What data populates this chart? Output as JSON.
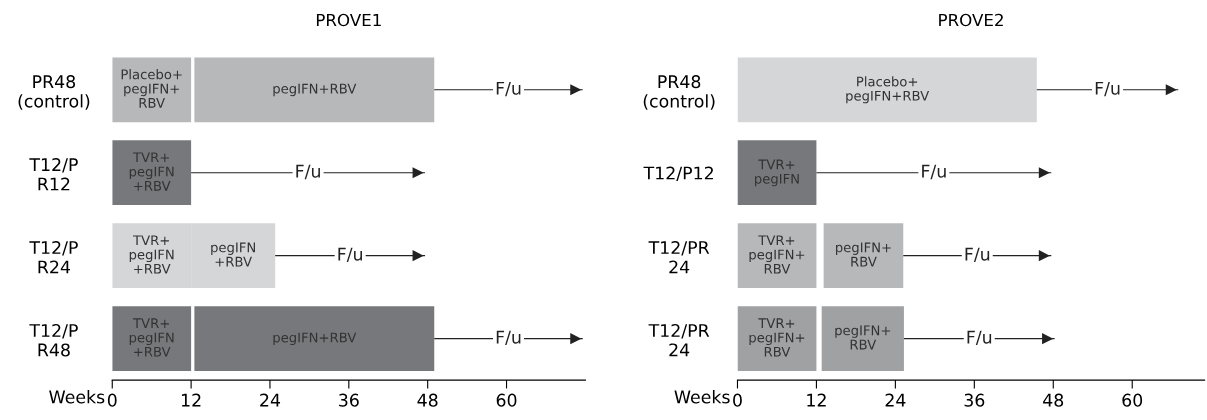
{
  "chart_data": [
    {
      "type": "bar",
      "title": "PROVE1",
      "orientation": "horizontal",
      "xlabel": "Weeks",
      "categories": [
        "PR48\n(control)",
        "T12/P\nR12",
        "T12/P\nR24",
        "T12/P\nR48"
      ],
      "series": [
        {
          "base": [
            0,
            0,
            0,
            0
          ],
          "values": [
            12,
            12,
            12,
            12
          ],
          "colors": [
            "#b7b8ba",
            "#77787b",
            "#d5d6d8",
            "#77787b"
          ],
          "value_labels": [
            "Placebo+\npegIFN+\nRBV",
            "TVR+\npegIFN\n+RBV",
            "TVR+\npegIFN\n+RBV",
            "TVR+\npegIFN\n+RBV"
          ]
        },
        {
          "base": [
            12.5,
            null,
            12,
            12.5
          ],
          "values": [
            36.5,
            null,
            12.8,
            36.5
          ],
          "colors": [
            "#b7b8ba",
            "#77787b",
            "#d5d6d8",
            "#77787b"
          ],
          "value_labels": [
            "pegIFN+RBV",
            null,
            "pegIFN\n+RBV",
            "pegIFN+RBV"
          ]
        },
        {
          "type": "bar",
          "marker": "triangle",
          "color": "#222222",
          "base": [
            49,
            12,
            24.8,
            49
          ],
          "values": [
            22.6,
            35.6,
            22.8,
            22.6
          ],
          "value_labels": [
            "F/u",
            "F/u",
            "F/u",
            "F/u"
          ]
        }
      ],
      "xlim": [
        0,
        72
      ],
      "xticks": [
        0,
        12,
        24,
        36,
        48,
        60
      ],
      "grid": false,
      "legend": false
    },
    {
      "type": "bar",
      "title": "PROVE2",
      "orientation": "horizontal",
      "xlabel": "Weeks",
      "categories": [
        "PR48\n(control)",
        "T12/P12",
        "T12/PR\n24",
        "T12/PR\n24"
      ],
      "series": [
        {
          "base": [
            0,
            0,
            0,
            0
          ],
          "values": [
            45.5,
            12,
            12,
            12
          ],
          "colors": [
            "#d5d6d8",
            "#77787b",
            "#b7b8ba",
            "#a0a1a3"
          ],
          "value_labels": [
            "Placebo+\npegIFN+RBV",
            "TVR+\npegIFN",
            "TVR+\npegIFN+\nRBV",
            "TVR+\npegIFN+\nRBV"
          ]
        },
        {
          "base": [
            null,
            null,
            13.1,
            12.8
          ],
          "values": [
            null,
            null,
            12.1,
            12.5
          ],
          "colors": [
            "#d5d6d8",
            "#77787b",
            "#b7b8ba",
            "#a0a1a3"
          ],
          "value_labels": [
            null,
            null,
            "pegIFN+\nRBV",
            "pegIFN+\nRBV"
          ]
        },
        {
          "type": "bar",
          "marker": "triangle",
          "color": "#222222",
          "base": [
            45.5,
            12,
            25.2,
            25.3
          ],
          "values": [
            21.5,
            35.7,
            22.5,
            22.9
          ],
          "value_labels": [
            "F/u",
            "F/u",
            "F/u",
            "F/u"
          ]
        }
      ],
      "xlim": [
        0,
        71
      ],
      "xticks": [
        0,
        12,
        24,
        36,
        48,
        60
      ],
      "grid": false,
      "legend": false
    }
  ]
}
